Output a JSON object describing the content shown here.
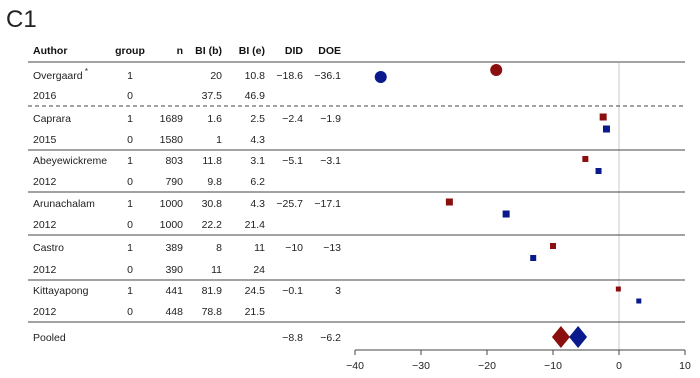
{
  "panel_label": "C1",
  "headers": {
    "author": "Author",
    "group": "group",
    "n": "n",
    "bi_b": "BI (b)",
    "bi_e": "BI (e)",
    "did": "DID",
    "doe": "DOE"
  },
  "colors": {
    "group1": "#8b0f0f",
    "group0": "#0a1a8c",
    "zero_line": "#c8c8c8",
    "rule": "#444444"
  },
  "chart_data": {
    "type": "forest",
    "title": "",
    "xlabel": "",
    "ylabel": "",
    "xlim": [
      -40,
      10
    ],
    "xticks": [
      "−40",
      "−30",
      "−20",
      "−10",
      "0",
      "10"
    ],
    "reference_line": 0,
    "dashed_separator_after_study": "Overgaard",
    "studies": [
      {
        "author": "Overgaard",
        "author_mark": "*",
        "year": "2016",
        "rows": [
          {
            "group": "1",
            "n": "",
            "bi_b": "20",
            "bi_e": "10.8",
            "did": "−18.6",
            "doe": "−36.1"
          },
          {
            "group": "0",
            "n": "",
            "bi_b": "37.5",
            "bi_e": "46.9",
            "did": "",
            "doe": ""
          }
        ],
        "did_value": -18.6,
        "doe_value": -36.1,
        "marker": "circle"
      },
      {
        "author": "Caprara",
        "author_mark": "",
        "year": "2015",
        "rows": [
          {
            "group": "1",
            "n": "1689",
            "bi_b": "1.6",
            "bi_e": "2.5",
            "did": "−2.4",
            "doe": "−1.9"
          },
          {
            "group": "0",
            "n": "1580",
            "bi_b": "1",
            "bi_e": "4.3",
            "did": "",
            "doe": ""
          }
        ],
        "did_value": -2.4,
        "doe_value": -1.9,
        "marker": "square"
      },
      {
        "author": "Abeyewickreme",
        "author_mark": "",
        "year": "2012",
        "rows": [
          {
            "group": "1",
            "n": "803",
            "bi_b": "11.8",
            "bi_e": "3.1",
            "did": "−5.1",
            "doe": "−3.1"
          },
          {
            "group": "0",
            "n": "790",
            "bi_b": "9.8",
            "bi_e": "6.2",
            "did": "",
            "doe": ""
          }
        ],
        "did_value": -5.1,
        "doe_value": -3.1,
        "marker": "square"
      },
      {
        "author": "Arunachalam",
        "author_mark": "",
        "year": "2012",
        "rows": [
          {
            "group": "1",
            "n": "1000",
            "bi_b": "30.8",
            "bi_e": "4.3",
            "did": "−25.7",
            "doe": "−17.1"
          },
          {
            "group": "0",
            "n": "1000",
            "bi_b": "22.2",
            "bi_e": "21.4",
            "did": "",
            "doe": ""
          }
        ],
        "did_value": -25.7,
        "doe_value": -17.1,
        "marker": "square"
      },
      {
        "author": "Castro",
        "author_mark": "",
        "year": "2012",
        "rows": [
          {
            "group": "1",
            "n": "389",
            "bi_b": "8",
            "bi_e": "11",
            "did": "−10",
            "doe": "−13"
          },
          {
            "group": "0",
            "n": "390",
            "bi_b": "11",
            "bi_e": "24",
            "did": "",
            "doe": ""
          }
        ],
        "did_value": -10,
        "doe_value": -13,
        "marker": "square"
      },
      {
        "author": "Kittayapong",
        "author_mark": "",
        "year": "2012",
        "rows": [
          {
            "group": "1",
            "n": "441",
            "bi_b": "81.9",
            "bi_e": "24.5",
            "did": "−0.1",
            "doe": "3"
          },
          {
            "group": "0",
            "n": "448",
            "bi_b": "78.8",
            "bi_e": "21.5",
            "did": "",
            "doe": ""
          }
        ],
        "did_value": -0.1,
        "doe_value": 3,
        "marker": "square"
      }
    ],
    "pooled": {
      "label": "Pooled",
      "did": "−8.8",
      "doe": "−6.2",
      "did_value": -8.8,
      "doe_value": -6.2,
      "marker": "diamond"
    }
  }
}
